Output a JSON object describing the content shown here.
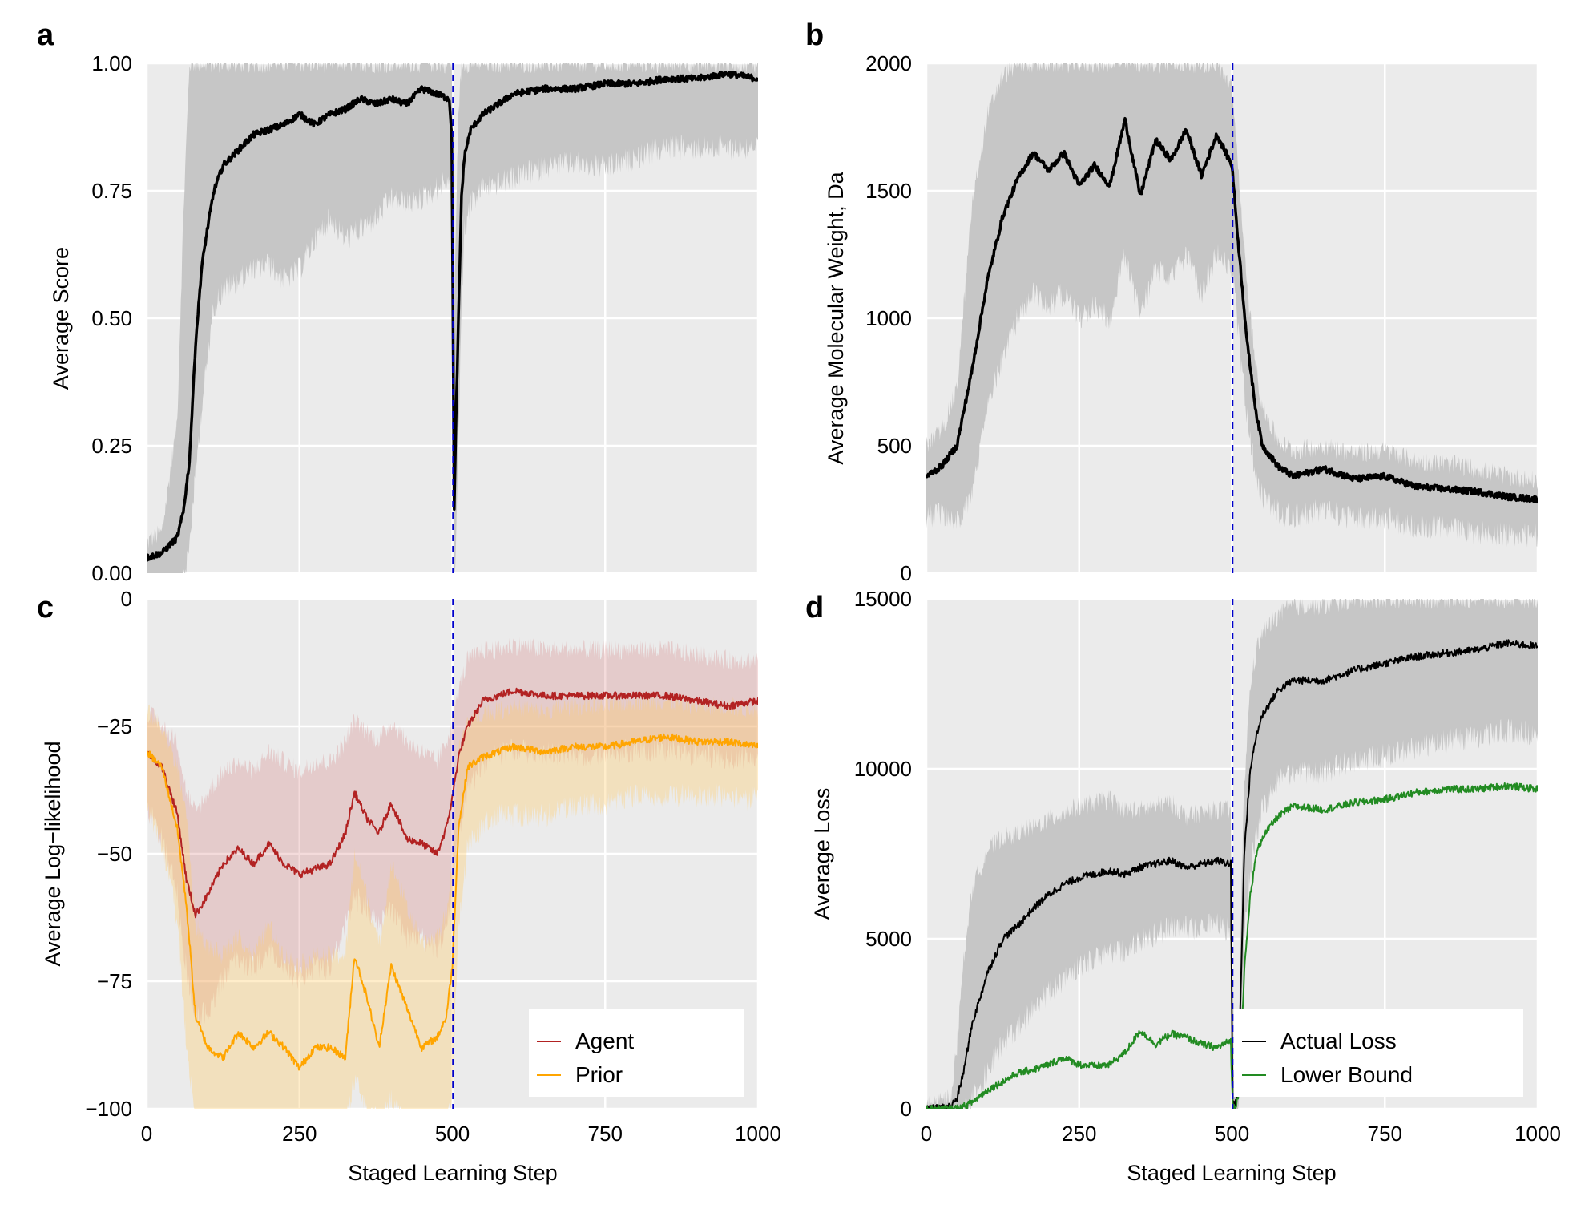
{
  "chart_data": [
    {
      "id": "a",
      "type": "line",
      "panel_letter": "a",
      "title": "",
      "xlabel": "",
      "ylabel": "Average Score",
      "xlim": [
        0,
        1000
      ],
      "ylim": [
        0,
        1
      ],
      "xticks": [
        0,
        250,
        500,
        750,
        1000
      ],
      "yticks": [
        0,
        0.25,
        0.5,
        0.75,
        1.0
      ],
      "ytick_labels": [
        "0.00",
        "0.25",
        "0.50",
        "0.75",
        "1.00"
      ],
      "xtick_labels": [],
      "grid": true,
      "vline": {
        "x": 501,
        "color": "#0000cc",
        "style": "dashed"
      },
      "legend": null,
      "x": [
        0,
        25,
        50,
        60,
        70,
        80,
        90,
        100,
        110,
        125,
        150,
        175,
        200,
        225,
        250,
        275,
        300,
        325,
        350,
        375,
        400,
        425,
        450,
        475,
        495,
        499,
        503,
        506,
        510,
        515,
        520,
        530,
        550,
        575,
        600,
        650,
        700,
        750,
        800,
        850,
        900,
        950,
        1000
      ],
      "series": [
        {
          "name": "Average Score",
          "color": "#000000",
          "band_color": "#c6c6c6",
          "values": [
            0.03,
            0.04,
            0.07,
            0.12,
            0.22,
            0.45,
            0.6,
            0.68,
            0.75,
            0.8,
            0.83,
            0.86,
            0.87,
            0.88,
            0.9,
            0.88,
            0.9,
            0.91,
            0.93,
            0.92,
            0.93,
            0.92,
            0.95,
            0.94,
            0.93,
            0.86,
            0.13,
            0.3,
            0.5,
            0.74,
            0.82,
            0.87,
            0.9,
            0.92,
            0.94,
            0.95,
            0.95,
            0.96,
            0.96,
            0.97,
            0.97,
            0.98,
            0.97
          ],
          "band_lower": [
            0.0,
            0.0,
            0.0,
            0.0,
            0.08,
            0.22,
            0.35,
            0.45,
            0.55,
            0.58,
            0.6,
            0.62,
            0.63,
            0.6,
            0.62,
            0.68,
            0.72,
            0.68,
            0.7,
            0.72,
            0.76,
            0.75,
            0.76,
            0.78,
            0.8,
            0.7,
            0.0,
            0.08,
            0.3,
            0.55,
            0.7,
            0.75,
            0.78,
            0.79,
            0.8,
            0.82,
            0.83,
            0.82,
            0.84,
            0.86,
            0.86,
            0.86,
            0.86
          ],
          "band_upper": [
            0.06,
            0.08,
            0.3,
            0.7,
            1.0,
            1.0,
            1.0,
            1.0,
            1.0,
            1.0,
            1.0,
            1.0,
            1.0,
            1.0,
            1.0,
            1.0,
            1.0,
            1.0,
            1.0,
            1.0,
            1.0,
            1.0,
            1.0,
            1.0,
            1.0,
            1.0,
            0.5,
            0.7,
            0.9,
            1.0,
            1.0,
            1.0,
            1.0,
            1.0,
            1.0,
            1.0,
            1.0,
            1.0,
            1.0,
            1.0,
            1.0,
            1.0,
            1.0
          ]
        }
      ]
    },
    {
      "id": "b",
      "type": "line",
      "panel_letter": "b",
      "title": "",
      "xlabel": "",
      "ylabel": "Average Molecular Weight, Da",
      "xlim": [
        0,
        1000
      ],
      "ylim": [
        0,
        2000
      ],
      "xticks": [
        0,
        250,
        500,
        750,
        1000
      ],
      "yticks": [
        0,
        500,
        1000,
        1500,
        2000
      ],
      "ytick_labels": [
        "0",
        "500",
        "1000",
        "1500",
        "2000"
      ],
      "xtick_labels": [],
      "grid": true,
      "vline": {
        "x": 501,
        "color": "#0000cc",
        "style": "dashed"
      },
      "legend": null,
      "x": [
        0,
        25,
        50,
        75,
        100,
        125,
        150,
        175,
        200,
        225,
        250,
        275,
        300,
        325,
        350,
        375,
        400,
        425,
        450,
        475,
        500,
        510,
        525,
        540,
        550,
        575,
        600,
        650,
        700,
        750,
        800,
        850,
        900,
        950,
        1000
      ],
      "series": [
        {
          "name": "Average Molecular Weight",
          "color": "#000000",
          "band_color": "#c6c6c6",
          "values": [
            380,
            420,
            500,
            800,
            1150,
            1400,
            1550,
            1650,
            1580,
            1650,
            1520,
            1600,
            1520,
            1780,
            1480,
            1700,
            1620,
            1740,
            1560,
            1720,
            1600,
            1300,
            900,
            620,
            500,
            420,
            380,
            410,
            370,
            380,
            340,
            330,
            320,
            300,
            290
          ],
          "band_lower": [
            270,
            280,
            250,
            350,
            700,
            900,
            1050,
            1150,
            1100,
            1150,
            1050,
            1100,
            1050,
            1300,
            1050,
            1250,
            1200,
            1300,
            1150,
            1300,
            1250,
            1000,
            650,
            420,
            350,
            290,
            270,
            300,
            260,
            270,
            230,
            230,
            210,
            200,
            200
          ],
          "band_upper": [
            500,
            560,
            720,
            1450,
            1800,
            1950,
            2000,
            2000,
            2000,
            2000,
            2000,
            2000,
            2000,
            2000,
            2000,
            2000,
            2000,
            2000,
            2000,
            2000,
            1900,
            1600,
            1100,
            800,
            650,
            520,
            480,
            500,
            470,
            480,
            440,
            430,
            410,
            380,
            360
          ]
        }
      ]
    },
    {
      "id": "c",
      "type": "line",
      "panel_letter": "c",
      "title": "",
      "xlabel": "Staged Learning Step",
      "ylabel": "Average Log−likelihood",
      "xlim": [
        0,
        1000
      ],
      "ylim": [
        -100,
        0
      ],
      "xticks": [
        0,
        250,
        500,
        750,
        1000
      ],
      "yticks": [
        -100,
        -75,
        -50,
        -25,
        0
      ],
      "ytick_labels": [
        "−100",
        "−75",
        "−50",
        "−25",
        "0"
      ],
      "xtick_labels": [
        "0",
        "250",
        "500",
        "750",
        "1000"
      ],
      "grid": true,
      "vline": {
        "x": 501,
        "color": "#0000cc",
        "style": "dashed"
      },
      "legend": {
        "placement": "bottom-right",
        "entries": [
          "Agent",
          "Prior"
        ]
      },
      "x": [
        0,
        25,
        50,
        65,
        80,
        100,
        125,
        150,
        175,
        200,
        225,
        250,
        275,
        300,
        325,
        340,
        360,
        380,
        400,
        425,
        450,
        475,
        490,
        500,
        510,
        525,
        550,
        575,
        600,
        650,
        700,
        750,
        800,
        850,
        900,
        950,
        1000
      ],
      "series": [
        {
          "name": "Agent",
          "color": "#b22222",
          "band_color": "rgba(205,92,92,0.22)",
          "values": [
            -30,
            -33,
            -42,
            -55,
            -62,
            -58,
            -52,
            -49,
            -52,
            -48,
            -52,
            -54,
            -53,
            -52,
            -46,
            -38,
            -43,
            -46,
            -40,
            -47,
            -48,
            -50,
            -45,
            -39,
            -31,
            -25,
            -20,
            -19,
            -18,
            -19,
            -19,
            -19,
            -19,
            -19,
            -20,
            -21,
            -20
          ],
          "band_lower": [
            -38,
            -45,
            -55,
            -70,
            -80,
            -78,
            -72,
            -68,
            -70,
            -66,
            -70,
            -72,
            -70,
            -70,
            -62,
            -56,
            -58,
            -62,
            -58,
            -64,
            -64,
            -66,
            -62,
            -55,
            -44,
            -35,
            -30,
            -28,
            -27,
            -28,
            -28,
            -28,
            -27,
            -27,
            -28,
            -29,
            -28
          ],
          "band_upper": [
            -22,
            -25,
            -28,
            -38,
            -42,
            -38,
            -34,
            -32,
            -34,
            -30,
            -32,
            -34,
            -32,
            -32,
            -28,
            -24,
            -26,
            -28,
            -24,
            -28,
            -30,
            -32,
            -28,
            -24,
            -18,
            -12,
            -10,
            -10,
            -9,
            -10,
            -10,
            -10,
            -10,
            -10,
            -11,
            -12,
            -12
          ]
        },
        {
          "name": "Prior",
          "color": "#ffa500",
          "band_color": "rgba(255,204,102,0.35)",
          "values": [
            -30,
            -33,
            -45,
            -60,
            -82,
            -88,
            -90,
            -85,
            -88,
            -85,
            -88,
            -92,
            -88,
            -88,
            -90,
            -70,
            -78,
            -88,
            -72,
            -80,
            -88,
            -86,
            -82,
            -72,
            -45,
            -33,
            -31,
            -30,
            -29,
            -30,
            -29,
            -29,
            -28,
            -27,
            -28,
            -28,
            -29
          ],
          "band_lower": [
            -38,
            -45,
            -60,
            -85,
            -100,
            -100,
            -100,
            -100,
            -100,
            -100,
            -100,
            -100,
            -100,
            -100,
            -100,
            -92,
            -98,
            -100,
            -96,
            -100,
            -100,
            -100,
            -100,
            -95,
            -62,
            -46,
            -42,
            -40,
            -40,
            -40,
            -38,
            -38,
            -36,
            -36,
            -36,
            -36,
            -37
          ],
          "band_upper": [
            -22,
            -25,
            -33,
            -42,
            -64,
            -68,
            -70,
            -66,
            -70,
            -64,
            -70,
            -72,
            -70,
            -70,
            -70,
            -50,
            -58,
            -68,
            -52,
            -60,
            -68,
            -66,
            -62,
            -52,
            -30,
            -24,
            -22,
            -22,
            -21,
            -22,
            -21,
            -21,
            -20,
            -20,
            -21,
            -21,
            -22
          ]
        }
      ]
    },
    {
      "id": "d",
      "type": "line",
      "panel_letter": "d",
      "title": "",
      "xlabel": "Staged Learning Step",
      "ylabel": "Average Loss",
      "xlim": [
        0,
        1000
      ],
      "ylim": [
        0,
        15000
      ],
      "xticks": [
        0,
        250,
        500,
        750,
        1000
      ],
      "yticks": [
        0,
        5000,
        10000,
        15000
      ],
      "ytick_labels": [
        "0",
        "5000",
        "10000",
        "15000"
      ],
      "xtick_labels": [
        "0",
        "250",
        "500",
        "750",
        "1000"
      ],
      "grid": true,
      "vline": {
        "x": 501,
        "color": "#0000cc",
        "style": "dashed"
      },
      "legend": {
        "placement": "bottom-right",
        "entries": [
          "Actual Loss",
          "Lower Bound"
        ]
      },
      "x": [
        0,
        25,
        40,
        50,
        60,
        75,
        100,
        125,
        150,
        175,
        200,
        225,
        250,
        275,
        300,
        325,
        350,
        375,
        400,
        425,
        450,
        475,
        498,
        501,
        505,
        510,
        515,
        520,
        530,
        540,
        550,
        575,
        600,
        650,
        700,
        750,
        800,
        850,
        900,
        950,
        1000
      ],
      "series": [
        {
          "name": "Actual Loss",
          "color": "#000000",
          "band_color": "#c6c6c6",
          "values": [
            0,
            30,
            80,
            300,
            1000,
            2500,
            4000,
            5000,
            5400,
            5900,
            6300,
            6600,
            6800,
            6900,
            7000,
            6900,
            7100,
            7200,
            7300,
            7100,
            7200,
            7300,
            7200,
            200,
            100,
            500,
            4000,
            7500,
            10000,
            11000,
            11600,
            12300,
            12600,
            12600,
            12900,
            13100,
            13300,
            13400,
            13500,
            13700,
            13600
          ],
          "band_lower": [
            0,
            0,
            0,
            50,
            200,
            600,
            1500,
            2300,
            2800,
            3300,
            3800,
            4200,
            4600,
            4800,
            4900,
            5000,
            5300,
            5500,
            5700,
            5700,
            5700,
            5800,
            5600,
            0,
            0,
            0,
            2500,
            5500,
            7500,
            8500,
            9200,
            10000,
            10200,
            10300,
            10600,
            10800,
            11000,
            11200,
            11300,
            11500,
            11400
          ],
          "band_upper": [
            100,
            200,
            400,
            1800,
            4200,
            6500,
            7600,
            8000,
            8100,
            8300,
            8500,
            8700,
            8900,
            9000,
            9100,
            8800,
            8800,
            8900,
            9000,
            8600,
            8700,
            8800,
            8800,
            1500,
            800,
            1500,
            6000,
            9500,
            12500,
            13500,
            14000,
            14500,
            14800,
            14800,
            15000,
            15000,
            15000,
            15000,
            15000,
            15000,
            15000
          ]
        },
        {
          "name": "Lower Bound",
          "color": "#228b22",
          "band_color": null,
          "values": [
            0,
            0,
            0,
            10,
            50,
            200,
            550,
            800,
            1050,
            1150,
            1300,
            1500,
            1300,
            1250,
            1300,
            1650,
            2300,
            1900,
            2200,
            2100,
            1900,
            1800,
            2000,
            100,
            0,
            400,
            2000,
            4000,
            6300,
            7500,
            8000,
            8600,
            8900,
            8800,
            9000,
            9100,
            9300,
            9400,
            9400,
            9500,
            9400
          ],
          "band_lower": null,
          "band_upper": null
        }
      ]
    }
  ]
}
